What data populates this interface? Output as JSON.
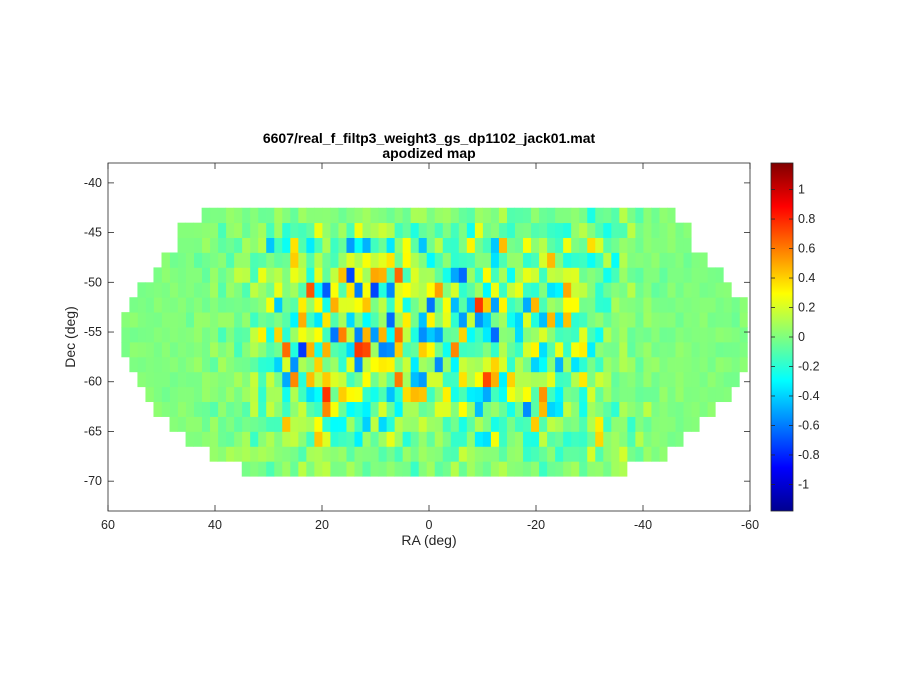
{
  "chart_data": {
    "type": "heatmap",
    "title": "6607/real_f_filtp3_weight3_gs_dp1102_jack01.mat",
    "subtitle": "apodized map",
    "xlabel": "RA (deg)",
    "ylabel": "Dec (deg)",
    "xlim": [
      60,
      -60
    ],
    "ylim": [
      -73,
      -38
    ],
    "x_reversed": true,
    "x_ticks": [
      "60",
      "40",
      "20",
      "0",
      "-20",
      "-40",
      "-60"
    ],
    "x_tick_values": [
      60,
      40,
      20,
      0,
      -20,
      -40,
      -60
    ],
    "y_ticks": [
      "-40",
      "-45",
      "-50",
      "-55",
      "-60",
      "-65",
      "-70"
    ],
    "y_tick_values": [
      -40,
      -45,
      -50,
      -55,
      -60,
      -65,
      -70
    ],
    "colormap": "jet",
    "clim": [
      -1.18,
      1.18
    ],
    "colorbar_ticks": [
      "1",
      "0.8",
      "0.6",
      "0.4",
      "0.2",
      "0",
      "-0.2",
      "-0.4",
      "-0.6",
      "-0.8",
      "-1"
    ],
    "colorbar_tick_values": [
      1,
      0.8,
      0.6,
      0.4,
      0.2,
      0,
      -0.2,
      -0.4,
      -0.6,
      -0.8,
      -1
    ],
    "background_value": 0,
    "footprint_dec_range": [
      -69.5,
      -41.8
    ],
    "footprint_ra_range": [
      57.5,
      -59.5
    ],
    "inner_noisy_region": {
      "ra": [
        34,
        -34
      ],
      "dec": [
        -67,
        -44
      ]
    },
    "grid": false,
    "legend": "none"
  }
}
